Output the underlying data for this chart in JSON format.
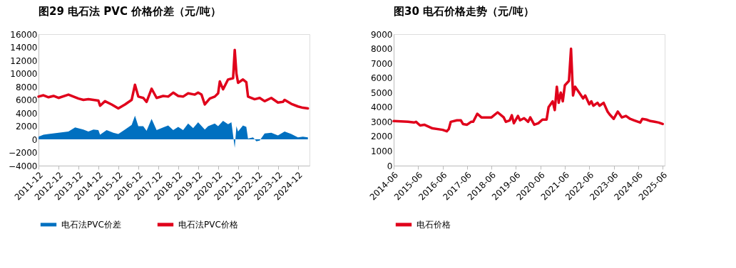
{
  "chart_data": [
    {
      "type": "line",
      "title": "图29  电石法 PVC 价格价差（元/吨）",
      "legend": "bottom",
      "grid": false,
      "xlim": [
        "2011-12",
        "2025-07"
      ],
      "xticks": [
        "2011-12",
        "2012-12",
        "2013-12",
        "2014-12",
        "2015-12",
        "2016-12",
        "2017-12",
        "2018-12",
        "2019-12",
        "2020-12",
        "2021-12",
        "2022-12",
        "2023-12",
        "2024-12"
      ],
      "ylim": [
        -4000,
        16000
      ],
      "yticks": [
        -4000,
        -2000,
        0,
        2000,
        4000,
        6000,
        8000,
        10000,
        12000,
        14000,
        16000
      ],
      "series": [
        {
          "name": "电石法PVC价差",
          "type": "area",
          "color": "#0070c0",
          "x": [
            "2011-12",
            "2012-03",
            "2012-06",
            "2012-12",
            "2013-06",
            "2013-10",
            "2014-03",
            "2014-06",
            "2014-09",
            "2014-12",
            "2015-01",
            "2015-05",
            "2015-09",
            "2015-12",
            "2016-04",
            "2016-08",
            "2016-10",
            "2016-12",
            "2017-03",
            "2017-05",
            "2017-08",
            "2017-11",
            "2018-03",
            "2018-06",
            "2018-09",
            "2018-12",
            "2019-03",
            "2019-06",
            "2019-09",
            "2019-12",
            "2020-04",
            "2020-06",
            "2020-10",
            "2020-12",
            "2021-03",
            "2021-06",
            "2021-08",
            "2021-10",
            "2021-11",
            "2021-12",
            "2022-03",
            "2022-05",
            "2022-06",
            "2022-09",
            "2022-11",
            "2023-01",
            "2023-02",
            "2023-04",
            "2023-08",
            "2023-12",
            "2024-04",
            "2024-08",
            "2024-12",
            "2025-03",
            "2025-06"
          ],
          "values": [
            400,
            700,
            800,
            1000,
            1200,
            1800,
            1500,
            1200,
            1500,
            1400,
            700,
            1400,
            1000,
            800,
            1500,
            2200,
            3600,
            2000,
            2000,
            1300,
            3100,
            1400,
            1800,
            2100,
            1400,
            1900,
            1400,
            2400,
            1700,
            2600,
            1500,
            2000,
            2400,
            2000,
            2800,
            2300,
            2600,
            -1300,
            2000,
            1200,
            2100,
            1900,
            100,
            300,
            -300,
            -200,
            200,
            900,
            1000,
            600,
            1200,
            800,
            300,
            400,
            300
          ]
        },
        {
          "name": "电石法PVC价格",
          "type": "line",
          "color": "#e0001b",
          "x": [
            "2011-12",
            "2012-03",
            "2012-06",
            "2012-09",
            "2012-12",
            "2013-06",
            "2013-12",
            "2014-03",
            "2014-06",
            "2014-12",
            "2015-01",
            "2015-04",
            "2015-08",
            "2015-12",
            "2016-04",
            "2016-08",
            "2016-10",
            "2016-12",
            "2017-03",
            "2017-05",
            "2017-08",
            "2017-11",
            "2018-03",
            "2018-06",
            "2018-09",
            "2018-12",
            "2019-03",
            "2019-06",
            "2019-10",
            "2019-12",
            "2020-02",
            "2020-04",
            "2020-07",
            "2020-10",
            "2020-12",
            "2021-01",
            "2021-03",
            "2021-06",
            "2021-09",
            "2021-10",
            "2021-11",
            "2021-12",
            "2022-03",
            "2022-05",
            "2022-06",
            "2022-10",
            "2023-01",
            "2023-04",
            "2023-08",
            "2023-12",
            "2024-03",
            "2024-04",
            "2024-08",
            "2024-12",
            "2025-03",
            "2025-06"
          ],
          "values": [
            6500,
            6700,
            6400,
            6600,
            6300,
            6800,
            6200,
            6000,
            6100,
            5900,
            5100,
            5800,
            5300,
            4700,
            5300,
            6000,
            8300,
            6500,
            6300,
            5700,
            7700,
            6300,
            6600,
            6500,
            7100,
            6600,
            6500,
            7000,
            6800,
            7100,
            6800,
            5300,
            6200,
            6500,
            7000,
            8800,
            7600,
            9100,
            9300,
            13600,
            10000,
            8600,
            9100,
            8700,
            6500,
            6100,
            6300,
            5800,
            6300,
            5600,
            5700,
            6000,
            5400,
            5000,
            4800,
            4700
          ]
        }
      ]
    },
    {
      "type": "line",
      "title": "图30  电石价格走势（元/吨）",
      "legend": "bottom",
      "grid": false,
      "xlim": [
        "2014-06",
        "2025-07"
      ],
      "xticks": [
        "2014-06",
        "2015-06",
        "2016-06",
        "2017-06",
        "2018-06",
        "2019-06",
        "2020-06",
        "2021-06",
        "2022-06",
        "2023-06",
        "2024-06",
        "2025-06"
      ],
      "ylim": [
        0,
        9000
      ],
      "yticks": [
        0,
        1000,
        2000,
        3000,
        4000,
        5000,
        6000,
        7000,
        8000,
        9000
      ],
      "series": [
        {
          "name": "电石价格",
          "type": "line",
          "color": "#e0001b",
          "x": [
            "2014-06",
            "2015-01",
            "2015-04",
            "2015-05",
            "2015-07",
            "2015-09",
            "2016-01",
            "2016-06",
            "2016-08",
            "2016-09",
            "2016-10",
            "2017-01",
            "2017-03",
            "2017-04",
            "2017-06",
            "2017-08",
            "2017-09",
            "2017-11",
            "2018-01",
            "2018-06",
            "2018-09",
            "2018-12",
            "2019-01",
            "2019-03",
            "2019-04",
            "2019-05",
            "2019-07",
            "2019-08",
            "2019-10",
            "2019-12",
            "2020-01",
            "2020-03",
            "2020-05",
            "2020-07",
            "2020-09",
            "2020-10",
            "2020-12",
            "2021-01",
            "2021-02",
            "2021-03",
            "2021-04",
            "2021-05",
            "2021-06",
            "2021-08",
            "2021-09",
            "2021-10",
            "2021-11",
            "2022-01",
            "2022-03",
            "2022-04",
            "2022-06",
            "2022-07",
            "2022-08",
            "2022-10",
            "2022-11",
            "2023-01",
            "2023-03",
            "2023-04",
            "2023-06",
            "2023-08",
            "2023-10",
            "2023-12",
            "2024-02",
            "2024-04",
            "2024-07",
            "2024-08",
            "2024-10",
            "2024-12",
            "2025-02",
            "2025-04",
            "2025-06"
          ],
          "values": [
            3050,
            3000,
            2950,
            3000,
            2750,
            2800,
            2550,
            2450,
            2350,
            2500,
            3000,
            3100,
            3100,
            2850,
            2800,
            3000,
            3000,
            3550,
            3300,
            3300,
            3650,
            3300,
            3000,
            3100,
            3450,
            2900,
            3400,
            3100,
            3250,
            3000,
            3300,
            2800,
            2900,
            3150,
            3150,
            4000,
            4400,
            3800,
            5400,
            4300,
            5000,
            4400,
            5500,
            5800,
            8000,
            4800,
            5400,
            5000,
            4600,
            4800,
            4200,
            4400,
            4100,
            4300,
            4100,
            4300,
            3700,
            3500,
            3200,
            3700,
            3300,
            3400,
            3200,
            3100,
            2950,
            3200,
            3150,
            3050,
            3000,
            2950,
            2850
          ]
        }
      ]
    }
  ]
}
